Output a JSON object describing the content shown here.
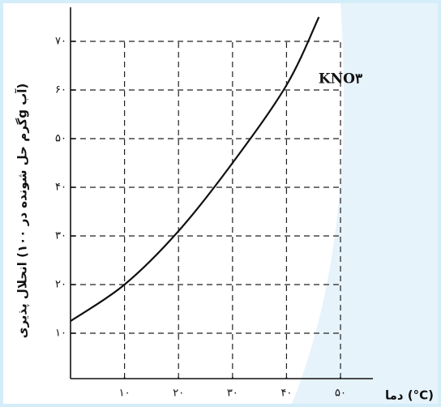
{
  "chart_data": {
    "type": "line",
    "ylabel": "انحلال پذیری (گرم حل شونده در ۱۰۰g آب)",
    "xlabel": "دما (°C)",
    "annotation": "KNO۳",
    "x": [
      0,
      10,
      20,
      30,
      40,
      46
    ],
    "series": [
      {
        "name": "KNO۳",
        "color": "#111111",
        "values": [
          12.5,
          20,
          31,
          45,
          61,
          75
        ]
      }
    ],
    "xlim": [
      0,
      56
    ],
    "ylim": [
      0,
      77
    ],
    "xticks": [
      {
        "value": 10,
        "label": "۱۰"
      },
      {
        "value": 20,
        "label": "۲۰"
      },
      {
        "value": 30,
        "label": "۳۰"
      },
      {
        "value": 40,
        "label": "۴۰"
      },
      {
        "value": 50,
        "label": "۵۰"
      }
    ],
    "yticks": [
      {
        "value": 10,
        "label": "۱۰"
      },
      {
        "value": 20,
        "label": "۲۰"
      },
      {
        "value": 30,
        "label": "۳۰"
      },
      {
        "value": 40,
        "label": "۴۰"
      },
      {
        "value": 50,
        "label": "۵۰"
      },
      {
        "value": 60,
        "label": "۶۰"
      },
      {
        "value": 70,
        "label": "۷۰"
      }
    ],
    "grid": true
  }
}
